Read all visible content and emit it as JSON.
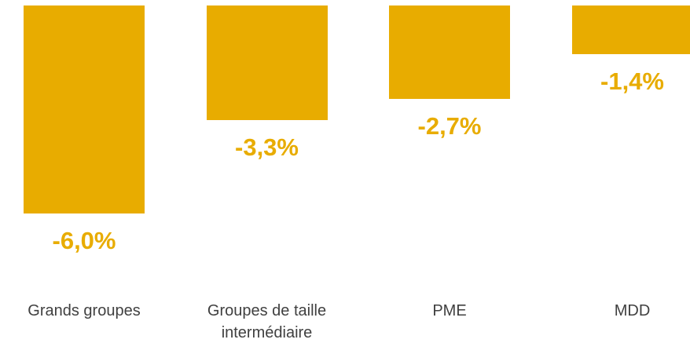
{
  "chart_data": {
    "type": "bar",
    "categories": [
      "Grands groupes",
      "Groupes de taille intermédiaire",
      "PME",
      "MDD"
    ],
    "values": [
      -6.0,
      -3.3,
      -2.7,
      -1.4
    ],
    "value_labels": [
      "-6,0%",
      "-3,3%",
      "-2,7%",
      "-1,4%"
    ],
    "color": "#e8ac00",
    "ylim": [
      -6.0,
      0
    ]
  }
}
